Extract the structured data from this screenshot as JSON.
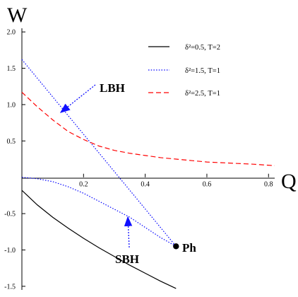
{
  "chart_data": {
    "type": "line",
    "title": "",
    "xlabel": "Q",
    "ylabel": "W",
    "xlim": [
      0.0,
      0.82
    ],
    "ylim": [
      -1.55,
      2.05
    ],
    "x_ticks": [
      {
        "value": 0.2,
        "label": "0.2"
      },
      {
        "value": 0.4,
        "label": "0.4"
      },
      {
        "value": 0.6,
        "label": "0.6"
      },
      {
        "value": 0.8,
        "label": "0.8"
      }
    ],
    "y_ticks": [
      {
        "value": -1.5,
        "label": "-1.5"
      },
      {
        "value": -1.0,
        "label": "-1.0"
      },
      {
        "value": -0.5,
        "label": "-0.5"
      },
      {
        "value": 0.5,
        "label": "0.5"
      },
      {
        "value": 1.0,
        "label": "1.0"
      },
      {
        "value": 1.5,
        "label": "1.5"
      },
      {
        "value": 2.0,
        "label": "2.0"
      }
    ],
    "grid": false,
    "legend_position": "top-right",
    "series": [
      {
        "name": "δ²=0.5, T=2",
        "color": "#000000",
        "dash": "solid",
        "x": [
          0.0,
          0.05,
          0.1,
          0.15,
          0.2,
          0.25,
          0.3,
          0.35,
          0.4,
          0.45,
          0.5
        ],
        "y": [
          -0.18,
          -0.38,
          -0.55,
          -0.7,
          -0.84,
          -0.97,
          -1.09,
          -1.21,
          -1.32,
          -1.43,
          -1.53
        ]
      },
      {
        "name": "δ²=1.5, T=1",
        "color": "#0000ff",
        "dash": "dotted",
        "segments": [
          {
            "x": [
              0.0,
              0.5
            ],
            "y": [
              1.62,
              -0.95
            ]
          },
          {
            "x": [
              0.0,
              0.05,
              0.1,
              0.15,
              0.2,
              0.25,
              0.3,
              0.35,
              0.4,
              0.45,
              0.5
            ],
            "y": [
              0.0,
              -0.02,
              -0.06,
              -0.13,
              -0.22,
              -0.33,
              -0.44,
              -0.55,
              -0.69,
              -0.83,
              -0.95
            ]
          }
        ]
      },
      {
        "name": "δ²=2.5, T=1",
        "color": "#ff0000",
        "dash": "dashed",
        "x": [
          0.0,
          0.05,
          0.1,
          0.15,
          0.2,
          0.25,
          0.3,
          0.35,
          0.4,
          0.45,
          0.5,
          0.55,
          0.6,
          0.65,
          0.7,
          0.75,
          0.82
        ],
        "y": [
          1.17,
          0.97,
          0.79,
          0.63,
          0.52,
          0.43,
          0.37,
          0.33,
          0.3,
          0.27,
          0.25,
          0.23,
          0.21,
          0.2,
          0.19,
          0.18,
          0.16
        ]
      }
    ],
    "annotations": [
      {
        "label": "LBH",
        "points_to": {
          "x": 0.12,
          "y": 0.92
        }
      },
      {
        "label": "SBH",
        "points_to": {
          "x": 0.35,
          "y": -0.53
        }
      },
      {
        "label": "Ph",
        "marker": {
          "x": 0.5,
          "y": -0.95
        }
      }
    ]
  }
}
